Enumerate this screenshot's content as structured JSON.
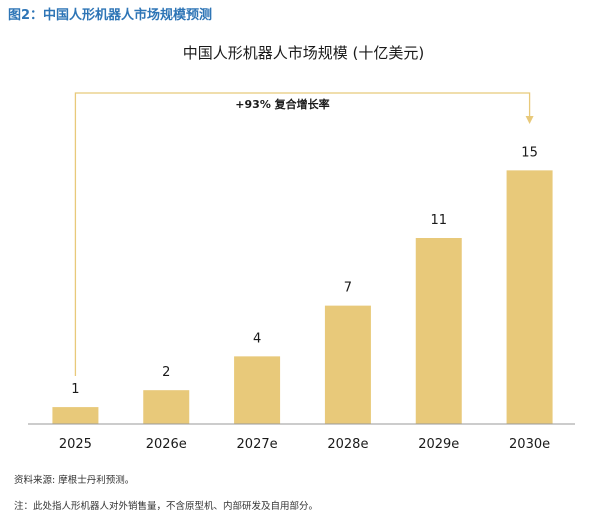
{
  "figure_title": "图2：中国人形机器人市场规模预测",
  "chart_data": {
    "type": "bar",
    "title": "中国人形机器人市场规模 (十亿美元)",
    "categories": [
      "2025",
      "2026e",
      "2027e",
      "2028e",
      "2029e",
      "2030e"
    ],
    "values": [
      1,
      2,
      4,
      7,
      11,
      15
    ],
    "data_labels": [
      "1",
      "2",
      "4",
      "7",
      "11",
      "15"
    ],
    "ylim": [
      0,
      16.5
    ],
    "grid": false,
    "bar_color": "#e8c97a",
    "annotation": {
      "text": "+93% 复合增长率",
      "from_category": "2025",
      "to_category": "2030e",
      "color": "#e8c97a"
    }
  },
  "source_note": "资料来源: 摩根士丹利预测。",
  "footnote": "注：此处指人形机器人对外销售量，不含原型机、内部研发及自用部分。"
}
